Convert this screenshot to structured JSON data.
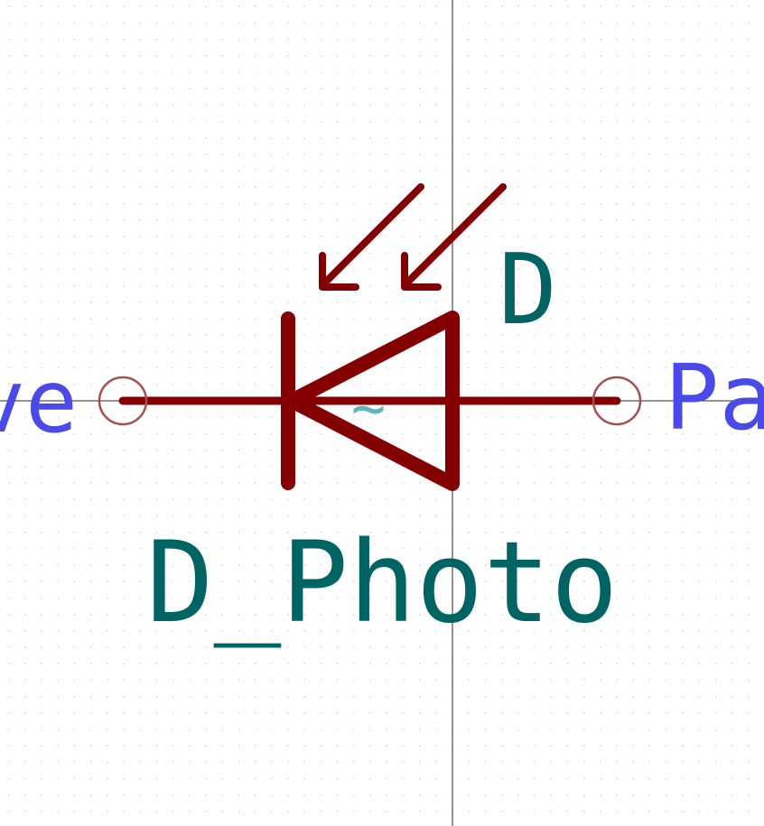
{
  "symbol": {
    "reference": "D",
    "value": "D_Photo",
    "pin_left_label": "ve",
    "pin_right_label": "Pa",
    "center_marker": "~"
  },
  "colors": {
    "body": "#840000",
    "pin_circle": "#a64f4f",
    "reference_text": "#006464",
    "pin_text": "#4a4ae8",
    "marker": "#5fb8b8",
    "grid_dot": "#c8c8c8",
    "axis": "#2a2a2a",
    "background": "#ffffff"
  }
}
